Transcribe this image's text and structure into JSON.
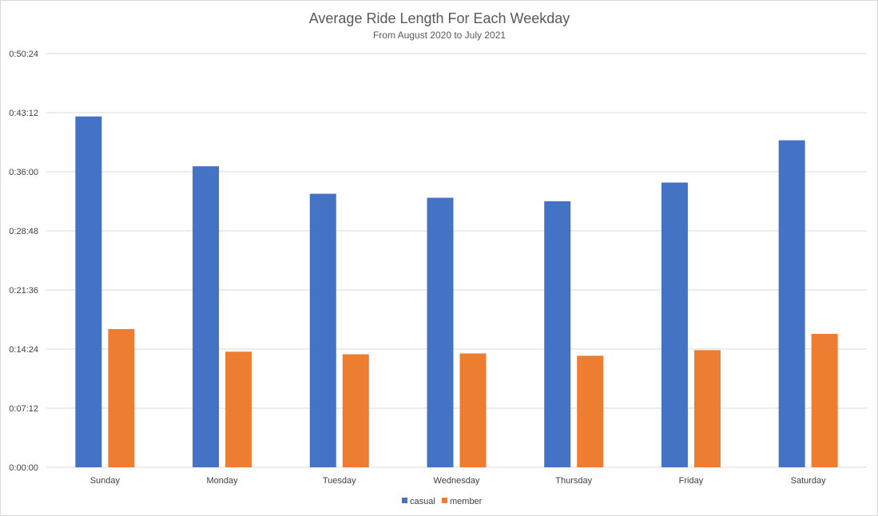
{
  "chart_data": {
    "type": "bar",
    "title": "Average Ride Length For Each Weekday",
    "subtitle": "From August 2020 to July 2021",
    "xlabel": "",
    "ylabel": "",
    "categories": [
      "Sunday",
      "Monday",
      "Tuesday",
      "Wednesday",
      "Thursday",
      "Friday",
      "Saturday"
    ],
    "series": [
      {
        "name": "casual",
        "color": "#4472C4",
        "values": [
          "0:42:44",
          "0:36:40",
          "0:33:19",
          "0:32:50",
          "0:32:24",
          "0:34:41",
          "0:39:50"
        ]
      },
      {
        "name": "member",
        "color": "#ED7D31",
        "values": [
          "0:16:50",
          "0:14:05",
          "0:13:46",
          "0:13:52",
          "0:13:35",
          "0:14:16",
          "0:16:15"
        ]
      }
    ],
    "ylim": [
      "0:00:00",
      "0:50:24"
    ],
    "yticks": [
      "0:00:00",
      "0:07:12",
      "0:14:24",
      "0:21:36",
      "0:28:48",
      "0:36:00",
      "0:43:12",
      "0:50:24"
    ],
    "grid": true,
    "legend": "bottom"
  }
}
